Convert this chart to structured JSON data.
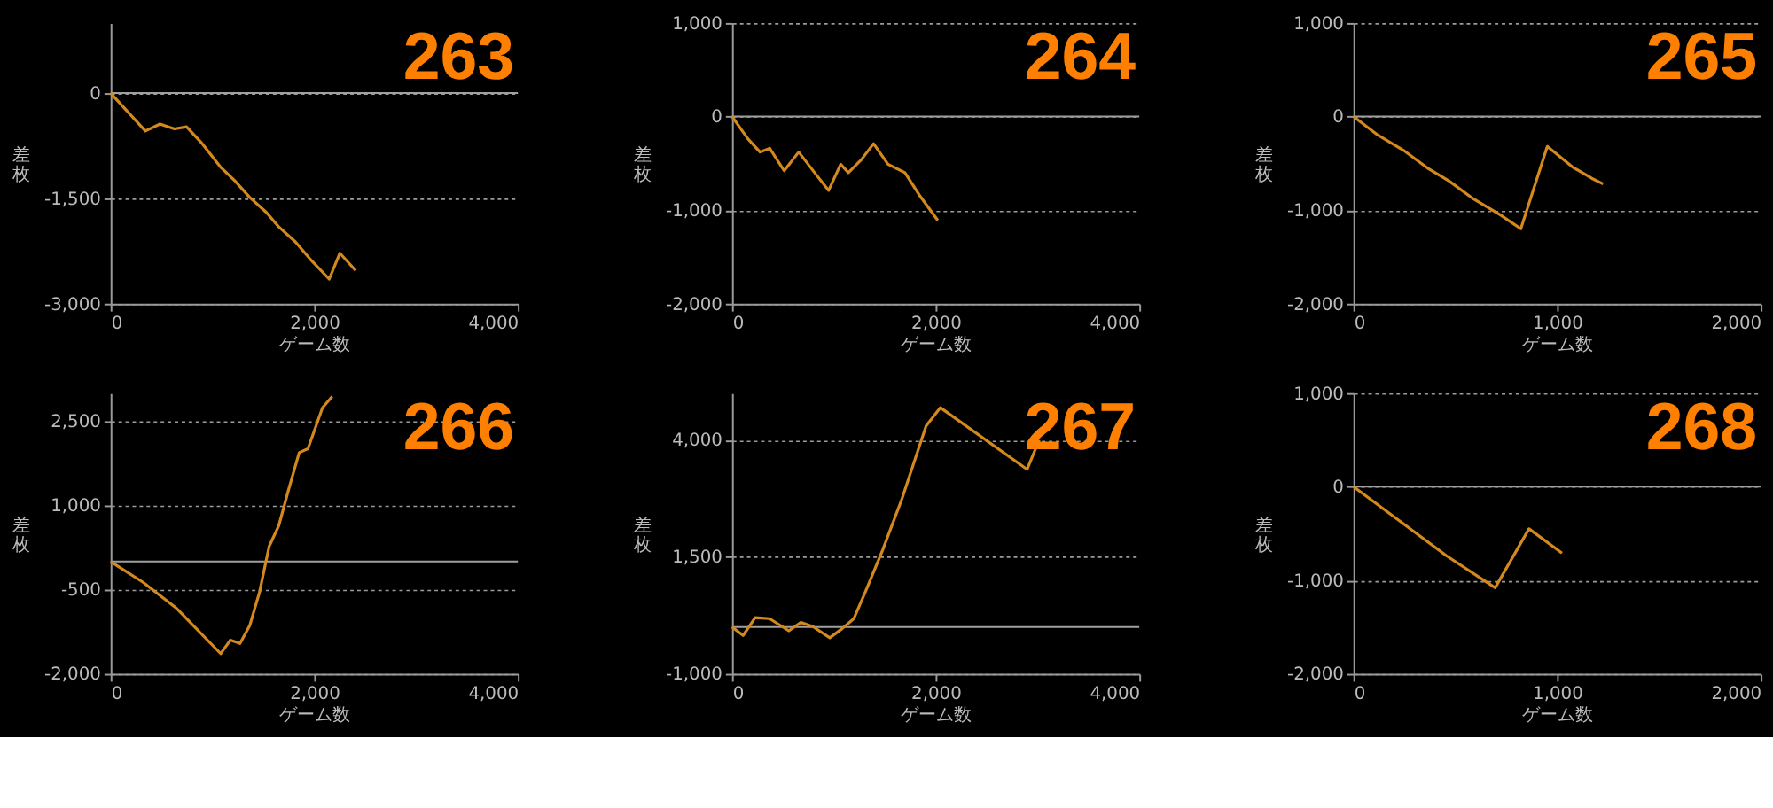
{
  "chart_data": [
    {
      "type": "line",
      "title": "263",
      "xlabel": "ゲーム数",
      "ylabel": "差枚",
      "color": "#d4891c",
      "grid": "y",
      "x": [
        0,
        342,
        485,
        627,
        746,
        888,
        1078,
        1221,
        1363,
        1530,
        1648,
        1815,
        1957,
        2147,
        2252,
        2408
      ],
      "values": [
        0,
        -540,
        -440,
        -510,
        -480,
        -700,
        -1050,
        -1250,
        -1480,
        -1700,
        -1900,
        -2120,
        -2360,
        -2650,
        -2280,
        -2530
      ],
      "xlim": [
        0,
        4000
      ],
      "xticks": [
        0,
        {
          "value": 2000,
          "label": "2,000"
        },
        {
          "value": 4000,
          "label": "4,000"
        }
      ],
      "ylim": [
        -3000,
        1000
      ],
      "yticks": [
        {
          "value": -3000,
          "label": "-3,000"
        },
        {
          "value": -1500,
          "label": "-1,500"
        },
        0
      ],
      "ref_lines": [
        {
          "axis": "y",
          "value": 0,
          "color": "#a0a0a0"
        }
      ]
    },
    {
      "type": "line",
      "title": "264",
      "xlabel": "ゲーム数",
      "ylabel": "差枚",
      "color": "#d4891c",
      "grid": "y",
      "x": [
        0,
        157,
        275,
        370,
        512,
        655,
        811,
        949,
        1067,
        1143,
        1271,
        1390,
        1532,
        1698,
        1840,
        2021
      ],
      "values": [
        0,
        -240,
        -380,
        -340,
        -580,
        -380,
        -600,
        -790,
        -510,
        -600,
        -460,
        -290,
        -510,
        -600,
        -840,
        -1110
      ],
      "xlim": [
        0,
        4000
      ],
      "xticks": [
        0,
        {
          "value": 2000,
          "label": "2,000"
        },
        {
          "value": 4000,
          "label": "4,000"
        }
      ],
      "ylim": [
        -2000,
        1000
      ],
      "yticks": [
        {
          "value": -2000,
          "label": "-2,000"
        },
        {
          "value": -1000,
          "label": "-1,000"
        },
        0,
        {
          "value": 1000,
          "label": "1,000"
        }
      ],
      "ref_lines": [
        {
          "axis": "y",
          "value": 0,
          "color": "#a0a0a0"
        }
      ]
    },
    {
      "type": "line",
      "title": "265",
      "xlabel": "ゲーム数",
      "ylabel": "差枚",
      "color": "#d4891c",
      "grid": "y",
      "x": [
        0,
        114,
        245,
        363,
        470,
        589,
        720,
        822,
        952,
        1076,
        1170,
        1226
      ],
      "values": [
        0,
        -190,
        -360,
        -550,
        -690,
        -880,
        -1050,
        -1200,
        -320,
        -540,
        -660,
        -720
      ],
      "xlim": [
        0,
        2000
      ],
      "xticks": [
        0,
        {
          "value": 1000,
          "label": "1,000"
        },
        {
          "value": 2000,
          "label": "2,000"
        }
      ],
      "ylim": [
        -2000,
        1000
      ],
      "yticks": [
        {
          "value": -2000,
          "label": "-2,000"
        },
        {
          "value": -1000,
          "label": "-1,000"
        },
        0,
        {
          "value": 1000,
          "label": "1,000"
        }
      ],
      "ref_lines": [
        {
          "axis": "y",
          "value": 0,
          "color": "#a0a0a0"
        }
      ]
    },
    {
      "type": "line",
      "title": "266",
      "xlabel": "ゲーム数",
      "ylabel": "差枚",
      "color": "#d4891c",
      "grid": "y",
      "x": [
        0,
        319,
        652,
        1081,
        1176,
        1271,
        1367,
        1462,
        1557,
        1652,
        1748,
        1852,
        1938,
        2081,
        2176
      ],
      "values": [
        0,
        -370,
        -840,
        -1640,
        -1400,
        -1460,
        -1140,
        -550,
        270,
        640,
        1280,
        1940,
        2010,
        2740,
        2940
      ],
      "xlim": [
        0,
        4000
      ],
      "xticks": [
        0,
        {
          "value": 2000,
          "label": "2,000"
        },
        {
          "value": 4000,
          "label": "4,000"
        }
      ],
      "ylim": [
        -2000,
        3000
      ],
      "yticks": [
        {
          "value": -2000,
          "label": "-2,000"
        },
        -500,
        {
          "value": 1000,
          "label": "1,000"
        },
        {
          "value": 2500,
          "label": "2,500"
        }
      ],
      "ref_lines": [
        {
          "axis": "y",
          "value": 0,
          "color": "#a0a0a0"
        }
      ]
    },
    {
      "type": "line",
      "title": "267",
      "xlabel": "ゲーム数",
      "ylabel": "差枚",
      "color": "#d4891c",
      "grid": "y",
      "x": [
        0,
        109,
        227,
        369,
        558,
        676,
        795,
        960,
        1078,
        1197,
        1315,
        1480,
        1669,
        1906,
        2047,
        2898,
        3017
      ],
      "values": [
        0,
        -180,
        200,
        180,
        -80,
        100,
        10,
        -230,
        -40,
        180,
        780,
        1650,
        2740,
        4300,
        4690,
        3370,
        4000
      ],
      "xlim": [
        0,
        4000
      ],
      "xticks": [
        0,
        {
          "value": 2000,
          "label": "2,000"
        },
        {
          "value": 4000,
          "label": "4,000"
        }
      ],
      "ylim": [
        -1000,
        5000
      ],
      "yticks": [
        {
          "value": -1000,
          "label": "-1,000"
        },
        {
          "value": 1500,
          "label": "1,500"
        },
        {
          "value": 4000,
          "label": "4,000"
        }
      ],
      "ref_lines": [
        {
          "axis": "y",
          "value": 0,
          "color": "#a0a0a0"
        }
      ]
    },
    {
      "type": "line",
      "title": "268",
      "xlabel": "ゲーム数",
      "ylabel": "差枚",
      "color": "#d4891c",
      "grid": "y",
      "x": [
        0,
        458,
        696,
        862,
        1024
      ],
      "values": [
        0,
        -740,
        -1080,
        -450,
        -710
      ],
      "xlim": [
        0,
        2000
      ],
      "xticks": [
        0,
        {
          "value": 1000,
          "label": "1,000"
        },
        {
          "value": 2000,
          "label": "2,000"
        }
      ],
      "ylim": [
        -2000,
        1000
      ],
      "yticks": [
        {
          "value": -2000,
          "label": "-2,000"
        },
        {
          "value": -1000,
          "label": "-1,000"
        },
        0,
        {
          "value": 1000,
          "label": "1,000"
        }
      ],
      "ref_lines": [
        {
          "axis": "y",
          "value": 0,
          "color": "#a0a0a0"
        }
      ]
    }
  ]
}
